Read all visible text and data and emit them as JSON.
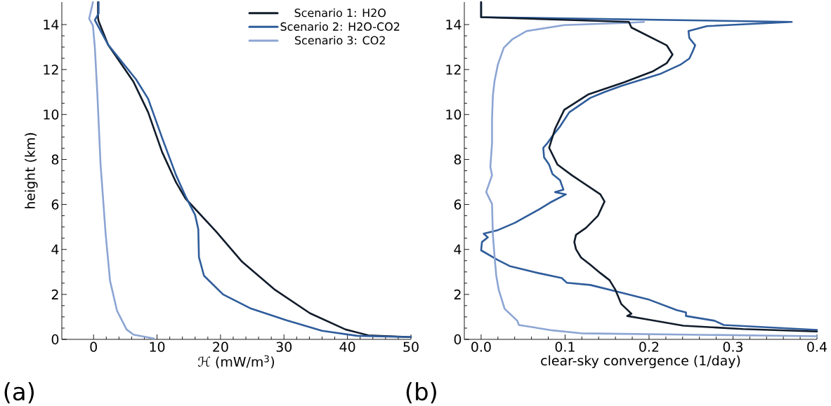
{
  "chart_data": [
    {
      "type": "line",
      "xlabel": "ℋ (mW/m$^{3}$)",
      "ylabel": "height (km)",
      "xlim": [
        -5,
        50
      ],
      "ylim": [
        0,
        15
      ],
      "xticks": [
        0,
        10,
        20,
        30,
        40,
        50
      ],
      "yticks": [
        0,
        2,
        4,
        6,
        8,
        10,
        12,
        14
      ],
      "legend": "top right",
      "grid": false,
      "annotations": [
        "(a)"
      ],
      "series": [
        {
          "name": "Scenario 1: H2O",
          "color": "#111c2b",
          "x": [
            0.7,
            0.7,
            0.8,
            2.3,
            6.3,
            8.6,
            10.8,
            13,
            14.5,
            19.3,
            23.4,
            28.6,
            34.1,
            39.7,
            43.3,
            50
          ],
          "values": [
            15,
            14.3,
            14.15,
            13.1,
            11.45,
            10.1,
            8.33,
            6.98,
            6.26,
            4.8,
            3.45,
            2.2,
            1.16,
            0.44,
            0.18,
            0.1
          ]
        },
        {
          "name": "Scenario 2: H2O-CO2",
          "color": "#2f5d9b",
          "x": [
            0.8,
            0.8,
            0.2,
            2.3,
            6.7,
            8.6,
            10.8,
            13,
            14.5,
            16,
            16.5,
            16.6,
            17.4,
            20.4,
            24.8,
            30.4,
            36,
            41.5,
            50
          ],
          "values": [
            15,
            14.5,
            14.2,
            13.1,
            11.56,
            10.7,
            8.96,
            7.3,
            6.36,
            5.53,
            4.9,
            3.66,
            2.83,
            2.0,
            1.37,
            0.85,
            0.38,
            0.16,
            0.1
          ]
        },
        {
          "name": "Scenario 3: CO2",
          "color": "#8ca5d3",
          "x": [
            -0.1,
            -0.7,
            -0.1,
            0.2,
            0.6,
            1.1,
            1.9,
            2.6,
            3.7,
            5.2,
            6.3,
            9.5
          ],
          "values": [
            15,
            14.26,
            13.95,
            13.0,
            10.9,
            7.8,
            4.7,
            2.6,
            1.27,
            0.44,
            0.21,
            0.04
          ]
        }
      ]
    },
    {
      "type": "line",
      "xlabel": "clear-sky convergence (1/day)",
      "xlim": [
        -0.02,
        0.4
      ],
      "ylim": [
        0,
        15
      ],
      "xticks": [
        {
          "value": 0,
          "label": "0.0"
        },
        0.1,
        0.2,
        0.3,
        0.4
      ],
      "yticks": [
        0,
        2,
        4,
        6,
        8,
        10,
        12,
        14
      ],
      "grid": false,
      "annotations": [
        "(b)"
      ],
      "series": [
        {
          "color": "#2f5d9b",
          "x": [
            0.0,
            0.0,
            0.37,
            0.269,
            0.247,
            0.248,
            0.255,
            0.252,
            0.248,
            0.238,
            0.213,
            0.167,
            0.147,
            0.13,
            0.105,
            0.094,
            0.085,
            0.079,
            0.074,
            0.075,
            0.081,
            0.085,
            0.094,
            0.098,
            0.088,
            0.101,
            0.082,
            0.068,
            0.04,
            0.02,
            0.003,
            0.008,
            0.001,
            0.0,
            0.02,
            0.034,
            0.068,
            0.096,
            0.102,
            0.13,
            0.17,
            0.199,
            0.233,
            0.244,
            0.244,
            0.278,
            0.289,
            0.4
          ],
          "values": [
            15,
            14.33,
            14.12,
            13.93,
            13.71,
            13.4,
            13.08,
            12.81,
            12.49,
            12.23,
            11.8,
            11.27,
            11.0,
            10.74,
            10.1,
            9.47,
            9.05,
            8.73,
            8.52,
            8.09,
            7.77,
            7.35,
            7.08,
            6.66,
            6.55,
            6.45,
            6.08,
            5.76,
            5.18,
            4.86,
            4.7,
            4.54,
            4.33,
            3.96,
            3.53,
            3.26,
            2.95,
            2.73,
            2.52,
            2.42,
            2.05,
            1.78,
            1.3,
            1.2,
            1.04,
            0.83,
            0.64,
            0.42
          ]
        },
        {
          "color": "#8ca5d3",
          "x": [
            0.194,
            0.176,
            0.099,
            0.054,
            0.037,
            0.027,
            0.02,
            0.016,
            0.014,
            0.013,
            0.013,
            0.011,
            0.013,
            0.006,
            0.013,
            0.014,
            0.016,
            0.018,
            0.021,
            0.028,
            0.043,
            0.045,
            0.085,
            0.119,
            0.4
          ],
          "values": [
            14.12,
            14.08,
            13.98,
            13.71,
            13.34,
            12.97,
            12.23,
            11.49,
            10.85,
            9.79,
            8.73,
            7.67,
            7.3,
            6.55,
            6.02,
            4.65,
            3.69,
            2.84,
            2.2,
            1.36,
            0.83,
            0.64,
            0.4,
            0.27,
            0.14
          ]
        },
        {
          "color": "#111c2b",
          "x": [
            0.0,
            0.0,
            0.176,
            0.179,
            0.221,
            0.228,
            0.221,
            0.204,
            0.17,
            0.128,
            0.099,
            0.088,
            0.081,
            0.091,
            0.108,
            0.142,
            0.147,
            0.139,
            0.125,
            0.113,
            0.111,
            0.113,
            0.119,
            0.13,
            0.142,
            0.153,
            0.16,
            0.167,
            0.179,
            0.174,
            0.199,
            0.241,
            0.312,
            0.4
          ],
          "values": [
            15,
            14.33,
            14.12,
            13.87,
            13.08,
            12.67,
            12.28,
            11.91,
            11.43,
            10.9,
            10.21,
            9.36,
            8.52,
            7.77,
            7.3,
            6.45,
            6.13,
            5.49,
            4.96,
            4.65,
            4.33,
            4.01,
            3.64,
            3.32,
            2.95,
            2.63,
            2.2,
            1.57,
            1.14,
            1.04,
            0.88,
            0.61,
            0.46,
            0.35
          ]
        }
      ]
    }
  ]
}
